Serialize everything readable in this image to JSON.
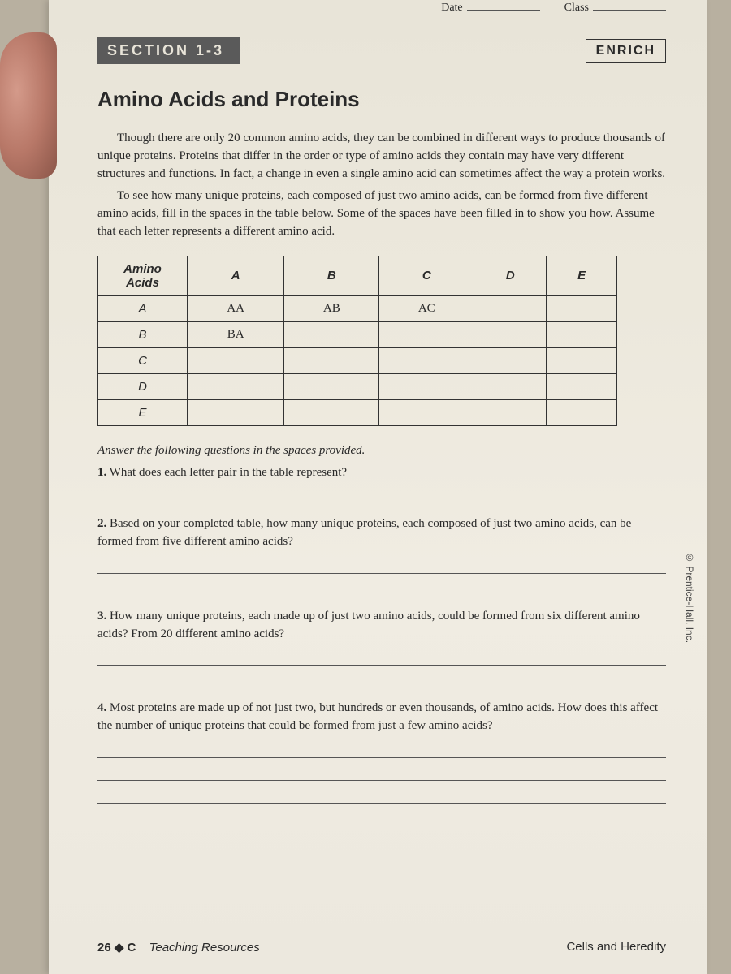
{
  "top": {
    "date_label": "Date",
    "class_label": "Class"
  },
  "section": {
    "label": "SECTION 1-3",
    "enrich": "ENRICH"
  },
  "title": "Amino Acids and Proteins",
  "intro": {
    "p1": "Though there are only 20 common amino acids, they can be combined in different ways to produce thousands of unique proteins. Proteins that differ in the order or type of amino acids they contain may have very different structures and functions. In fact, a change in even a single amino acid can sometimes affect the way a protein works.",
    "p2": "To see how many unique proteins, each composed of just two amino acids, can be formed from five different amino acids, fill in the spaces in the table below. Some of the spaces have been filled in to show you how. Assume that each letter represents a different amino acid."
  },
  "table": {
    "corner": "Amino Acids",
    "cols": [
      "A",
      "B",
      "C",
      "D",
      "E"
    ],
    "rows": [
      {
        "label": "A",
        "cells": [
          "AA",
          "AB",
          "AC",
          "",
          ""
        ]
      },
      {
        "label": "B",
        "cells": [
          "BA",
          "",
          "",
          "",
          ""
        ]
      },
      {
        "label": "C",
        "cells": [
          "",
          "",
          "",
          "",
          ""
        ]
      },
      {
        "label": "D",
        "cells": [
          "",
          "",
          "",
          "",
          ""
        ]
      },
      {
        "label": "E",
        "cells": [
          "",
          "",
          "",
          "",
          ""
        ]
      }
    ]
  },
  "instruction": "Answer the following questions in the spaces provided.",
  "questions": {
    "q1": {
      "num": "1.",
      "text": "What does each letter pair in the table represent?"
    },
    "q2": {
      "num": "2.",
      "text": "Based on your completed table, how many unique proteins, each composed of just two amino acids, can be formed from five different amino acids?"
    },
    "q3": {
      "num": "3.",
      "text": "How many unique proteins, each made up of just two amino acids, could be formed from six different amino acids? From 20 different amino acids?"
    },
    "q4": {
      "num": "4.",
      "text": "Most proteins are made up of not just two, but hundreds or even thousands, of amino acids. How does this affect the number of unique proteins that could be formed from just a few amino acids?"
    }
  },
  "footer": {
    "page_num": "26 ◆ C",
    "resources": "Teaching Resources",
    "book": "Cells and Heredity"
  },
  "copyright": "© Prentice-Hall, Inc."
}
